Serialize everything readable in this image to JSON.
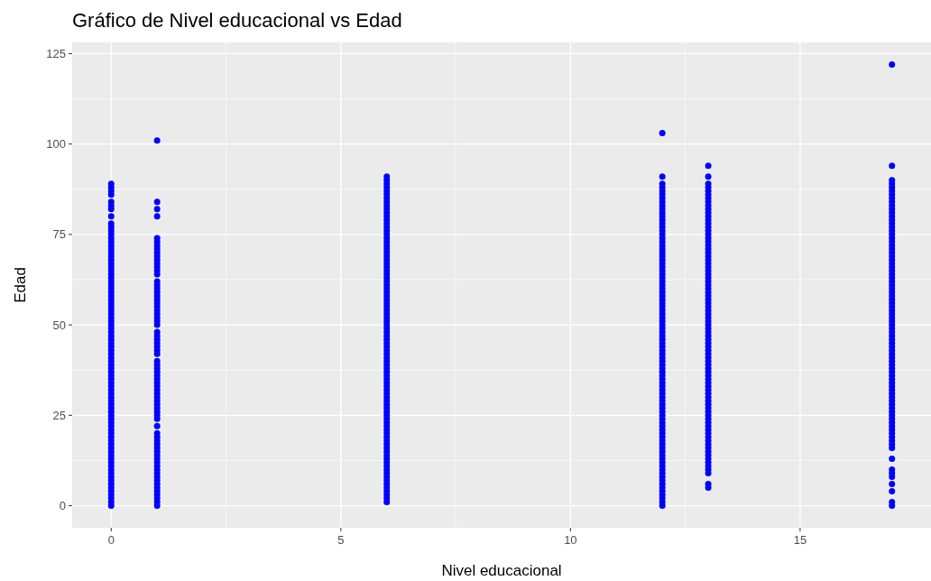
{
  "chart_data": {
    "type": "scatter",
    "title": "Gráfico de Nivel educacional vs Edad",
    "xlabel": "Nivel educacional",
    "ylabel": "Edad",
    "xlim": [
      -0.85,
      17.85
    ],
    "ylim": [
      -6.1,
      128.1
    ],
    "xticks": [
      0,
      5,
      10,
      15
    ],
    "yticks": [
      0,
      25,
      50,
      75,
      100,
      125
    ],
    "grid": true,
    "marker": "circle",
    "series": [
      {
        "color": "#0000ff",
        "x": [
          0,
          0,
          0,
          0,
          0,
          0,
          0,
          0,
          0,
          0,
          0,
          0,
          0,
          0,
          0,
          0,
          0,
          0,
          0,
          0,
          0,
          0,
          0,
          0,
          0,
          0,
          0,
          0,
          0,
          0,
          0,
          0,
          0,
          0,
          0,
          0,
          0,
          0,
          0,
          0,
          0,
          0,
          0,
          0,
          0,
          0,
          0,
          0,
          0,
          0,
          0,
          0,
          0,
          0,
          0,
          0,
          0,
          0,
          0,
          0,
          0,
          0,
          0,
          0,
          0,
          0,
          0,
          0,
          0,
          0,
          0,
          0,
          0,
          0,
          0,
          0,
          0,
          0,
          0,
          0,
          0,
          0,
          0,
          0,
          0,
          0,
          0
        ],
        "values": [
          0,
          1,
          2,
          3,
          4,
          5,
          6,
          7,
          8,
          9,
          10,
          11,
          12,
          13,
          14,
          15,
          16,
          17,
          18,
          19,
          20,
          21,
          22,
          23,
          24,
          25,
          26,
          27,
          28,
          29,
          30,
          31,
          32,
          33,
          34,
          35,
          36,
          37,
          38,
          39,
          40,
          41,
          42,
          43,
          44,
          45,
          46,
          47,
          48,
          49,
          50,
          51,
          52,
          53,
          54,
          55,
          56,
          57,
          58,
          59,
          60,
          61,
          62,
          63,
          64,
          65,
          66,
          67,
          68,
          69,
          70,
          71,
          72,
          73,
          74,
          75,
          76,
          77,
          78,
          80,
          82,
          83,
          84,
          86,
          87,
          88,
          89
        ]
      },
      {
        "color": "#0000ff",
        "x": [
          1,
          1,
          1,
          1,
          1,
          1,
          1,
          1,
          1,
          1,
          1,
          1,
          1,
          1,
          1,
          1,
          1,
          1,
          1,
          1,
          1,
          1,
          1,
          1,
          1,
          1,
          1,
          1,
          1,
          1,
          1,
          1,
          1,
          1,
          1,
          1,
          1,
          1,
          1,
          1,
          1,
          1,
          1,
          1,
          1,
          1,
          1,
          1,
          1,
          1,
          1,
          1,
          1,
          1,
          1,
          1,
          1,
          1,
          1,
          1,
          1,
          1,
          1,
          1,
          1,
          1,
          1,
          1,
          1,
          1,
          1,
          1,
          1,
          1
        ],
        "values": [
          0,
          1,
          2,
          3,
          4,
          5,
          6,
          7,
          8,
          9,
          10,
          11,
          12,
          13,
          14,
          15,
          16,
          17,
          18,
          19,
          20,
          22,
          24,
          25,
          26,
          27,
          28,
          29,
          30,
          31,
          32,
          33,
          34,
          35,
          36,
          37,
          38,
          39,
          40,
          42,
          43,
          44,
          45,
          46,
          47,
          48,
          50,
          51,
          52,
          53,
          54,
          55,
          56,
          57,
          58,
          59,
          60,
          61,
          62,
          64,
          65,
          66,
          67,
          68,
          69,
          70,
          71,
          72,
          73,
          74,
          80,
          82,
          84,
          101
        ]
      },
      {
        "color": "#0000ff",
        "x": [
          6,
          6,
          6,
          6,
          6,
          6,
          6,
          6,
          6,
          6,
          6,
          6,
          6,
          6,
          6,
          6,
          6,
          6,
          6,
          6,
          6,
          6,
          6,
          6,
          6,
          6,
          6,
          6,
          6,
          6,
          6,
          6,
          6,
          6,
          6,
          6,
          6,
          6,
          6,
          6,
          6,
          6,
          6,
          6,
          6,
          6,
          6,
          6,
          6,
          6,
          6,
          6,
          6,
          6,
          6,
          6,
          6,
          6,
          6,
          6,
          6,
          6,
          6,
          6,
          6,
          6,
          6,
          6,
          6,
          6,
          6,
          6,
          6,
          6,
          6,
          6,
          6,
          6,
          6,
          6,
          6,
          6,
          6,
          6,
          6,
          6,
          6,
          6,
          6,
          6,
          6
        ],
        "values": [
          1,
          2,
          3,
          4,
          5,
          6,
          7,
          8,
          9,
          10,
          11,
          12,
          13,
          14,
          15,
          16,
          17,
          18,
          19,
          20,
          21,
          22,
          23,
          24,
          25,
          26,
          27,
          28,
          29,
          30,
          31,
          32,
          33,
          34,
          35,
          36,
          37,
          38,
          39,
          40,
          41,
          42,
          43,
          44,
          45,
          46,
          47,
          48,
          49,
          50,
          51,
          52,
          53,
          54,
          55,
          56,
          57,
          58,
          59,
          60,
          61,
          62,
          63,
          64,
          65,
          66,
          67,
          68,
          69,
          70,
          71,
          72,
          73,
          74,
          75,
          76,
          77,
          78,
          79,
          80,
          81,
          82,
          83,
          84,
          85,
          86,
          87,
          88,
          89,
          90,
          91
        ]
      },
      {
        "color": "#0000ff",
        "x": [
          12,
          12,
          12,
          12,
          12,
          12,
          12,
          12,
          12,
          12,
          12,
          12,
          12,
          12,
          12,
          12,
          12,
          12,
          12,
          12,
          12,
          12,
          12,
          12,
          12,
          12,
          12,
          12,
          12,
          12,
          12,
          12,
          12,
          12,
          12,
          12,
          12,
          12,
          12,
          12,
          12,
          12,
          12,
          12,
          12,
          12,
          12,
          12,
          12,
          12,
          12,
          12,
          12,
          12,
          12,
          12,
          12,
          12,
          12,
          12,
          12,
          12,
          12,
          12,
          12,
          12,
          12,
          12,
          12,
          12,
          12,
          12,
          12,
          12,
          12,
          12,
          12,
          12,
          12,
          12,
          12,
          12,
          12,
          12,
          12,
          12,
          12,
          12,
          12,
          12,
          12,
          12
        ],
        "values": [
          0,
          1,
          2,
          3,
          4,
          5,
          6,
          7,
          8,
          9,
          10,
          11,
          12,
          13,
          14,
          15,
          16,
          17,
          18,
          19,
          20,
          21,
          22,
          23,
          24,
          25,
          26,
          27,
          28,
          29,
          30,
          31,
          32,
          33,
          34,
          35,
          36,
          37,
          38,
          39,
          40,
          41,
          42,
          43,
          44,
          45,
          46,
          47,
          48,
          49,
          50,
          51,
          52,
          53,
          54,
          55,
          56,
          57,
          58,
          59,
          60,
          61,
          62,
          63,
          64,
          65,
          66,
          67,
          68,
          69,
          70,
          71,
          72,
          73,
          74,
          75,
          76,
          77,
          78,
          79,
          80,
          81,
          82,
          83,
          84,
          85,
          86,
          87,
          88,
          89,
          91,
          103
        ]
      },
      {
        "color": "#0000ff",
        "x": [
          13,
          13,
          13,
          13,
          13,
          13,
          13,
          13,
          13,
          13,
          13,
          13,
          13,
          13,
          13,
          13,
          13,
          13,
          13,
          13,
          13,
          13,
          13,
          13,
          13,
          13,
          13,
          13,
          13,
          13,
          13,
          13,
          13,
          13,
          13,
          13,
          13,
          13,
          13,
          13,
          13,
          13,
          13,
          13,
          13,
          13,
          13,
          13,
          13,
          13,
          13,
          13,
          13,
          13,
          13,
          13,
          13,
          13,
          13,
          13,
          13,
          13,
          13,
          13,
          13,
          13,
          13,
          13,
          13,
          13,
          13,
          13,
          13,
          13,
          13,
          13,
          13,
          13,
          13,
          13,
          13,
          13,
          13,
          13,
          13
        ],
        "values": [
          5,
          6,
          9,
          10,
          11,
          12,
          13,
          14,
          15,
          16,
          17,
          18,
          19,
          20,
          21,
          22,
          23,
          24,
          25,
          26,
          27,
          28,
          29,
          30,
          31,
          32,
          33,
          34,
          35,
          36,
          37,
          38,
          39,
          40,
          41,
          42,
          43,
          44,
          45,
          46,
          47,
          48,
          49,
          50,
          51,
          52,
          53,
          54,
          55,
          56,
          57,
          58,
          59,
          60,
          61,
          62,
          63,
          64,
          65,
          66,
          67,
          68,
          69,
          70,
          71,
          72,
          73,
          74,
          75,
          76,
          77,
          78,
          79,
          80,
          81,
          82,
          83,
          84,
          85,
          86,
          87,
          88,
          89,
          91,
          94
        ]
      },
      {
        "color": "#0000ff",
        "x": [
          17,
          17,
          17,
          17,
          17,
          17,
          17,
          17,
          17,
          17,
          17,
          17,
          17,
          17,
          17,
          17,
          17,
          17,
          17,
          17,
          17,
          17,
          17,
          17,
          17,
          17,
          17,
          17,
          17,
          17,
          17,
          17,
          17,
          17,
          17,
          17,
          17,
          17,
          17,
          17,
          17,
          17,
          17,
          17,
          17,
          17,
          17,
          17,
          17,
          17,
          17,
          17,
          17,
          17,
          17,
          17,
          17,
          17,
          17,
          17,
          17,
          17,
          17,
          17,
          17,
          17,
          17,
          17,
          17,
          17,
          17,
          17,
          17,
          17,
          17,
          17,
          17,
          17,
          17,
          17,
          17,
          17,
          17,
          17,
          17
        ],
        "values": [
          0,
          1,
          4,
          6,
          8,
          9,
          10,
          13,
          16,
          17,
          18,
          19,
          20,
          21,
          22,
          23,
          24,
          25,
          26,
          27,
          28,
          29,
          30,
          31,
          32,
          33,
          34,
          35,
          36,
          37,
          38,
          39,
          40,
          41,
          42,
          43,
          44,
          45,
          46,
          47,
          48,
          49,
          50,
          51,
          52,
          53,
          54,
          55,
          56,
          57,
          58,
          59,
          60,
          61,
          62,
          63,
          64,
          65,
          66,
          67,
          68,
          69,
          70,
          71,
          72,
          73,
          74,
          75,
          76,
          77,
          78,
          79,
          80,
          81,
          82,
          83,
          84,
          85,
          86,
          87,
          88,
          89,
          90,
          94,
          122
        ]
      }
    ]
  }
}
